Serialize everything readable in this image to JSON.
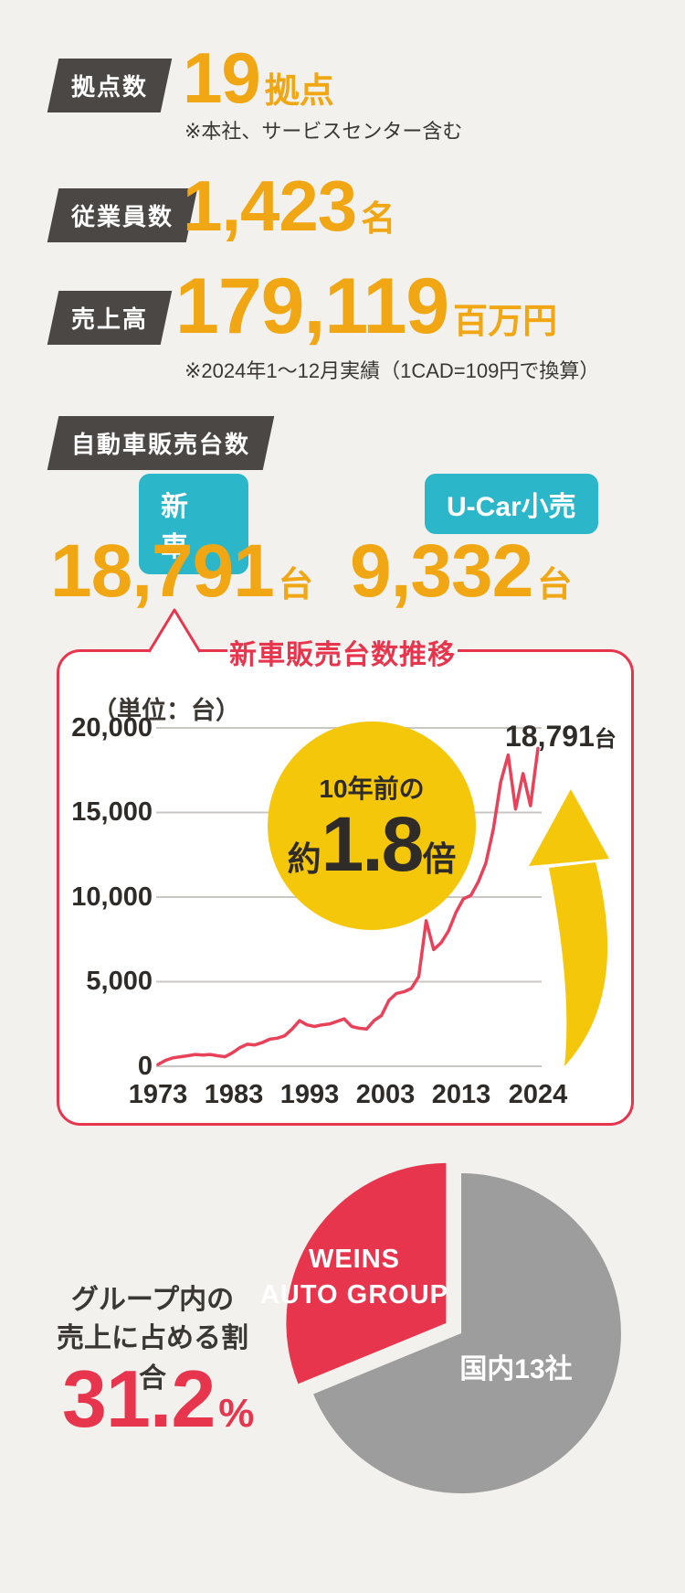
{
  "colors": {
    "background": "#f2f1ee",
    "accent_orange": "#f0a713",
    "accent_yellow": "#f5c70b",
    "accent_red": "#e8354e",
    "accent_cyan": "#2bb7c9",
    "badge_dark": "#4b4744",
    "text_dark": "#3b3733",
    "pie_gray": "#9d9d9d",
    "gridline": "#c9c7c4"
  },
  "stats": [
    {
      "label": "拠点数",
      "value": "19",
      "unit": "拠点",
      "note": "※本社、サービスセンター含む"
    },
    {
      "label": "従業員数",
      "value": "1,423",
      "unit": "名"
    },
    {
      "label": "売上高",
      "value": "179,119",
      "unit": "百万円",
      "note": "※2024年1〜12月実績（1CAD=109円で換算）"
    }
  ],
  "vehicle_sales": {
    "label": "自動車販売台数",
    "items": [
      {
        "badge": "新車",
        "value": "18,791",
        "unit": "台"
      },
      {
        "badge": "U-Car小売",
        "value": "9,332",
        "unit": "台"
      }
    ]
  },
  "chart_data": [
    {
      "type": "line",
      "title": "新車販売台数推移",
      "unit_label": "（単位：台）",
      "x": [
        1973,
        1974,
        1975,
        1976,
        1977,
        1978,
        1979,
        1980,
        1981,
        1982,
        1983,
        1984,
        1985,
        1986,
        1987,
        1988,
        1989,
        1990,
        1991,
        1992,
        1993,
        1994,
        1995,
        1996,
        1997,
        1998,
        1999,
        2000,
        2001,
        2002,
        2003,
        2004,
        2005,
        2006,
        2007,
        2008,
        2009,
        2010,
        2011,
        2012,
        2013,
        2014,
        2015,
        2016,
        2017,
        2018,
        2019,
        2020,
        2021,
        2022,
        2023,
        2024
      ],
      "values": [
        100,
        350,
        500,
        560,
        620,
        700,
        660,
        700,
        620,
        560,
        800,
        1100,
        1300,
        1260,
        1400,
        1600,
        1660,
        1800,
        2200,
        2700,
        2450,
        2350,
        2450,
        2500,
        2650,
        2800,
        2350,
        2250,
        2200,
        2700,
        3000,
        3900,
        4300,
        4400,
        4600,
        5300,
        8600,
        6900,
        7300,
        8000,
        9100,
        9900,
        10100,
        10900,
        12000,
        14000,
        16800,
        18400,
        15200,
        17300,
        15400,
        18791
      ],
      "ylim": [
        0,
        20000
      ],
      "yticks": [
        20000,
        15000,
        10000,
        5000,
        0
      ],
      "ytick_labels": [
        "20,000",
        "15,000",
        "10,000",
        "5,000",
        "0"
      ],
      "xtick_labels": [
        "1973",
        "1983",
        "1993",
        "2003",
        "2013",
        "2024"
      ],
      "grid": true,
      "legend": false,
      "line_color": "#e8425a",
      "annotations": {
        "bubble": {
          "line1": "10年前の",
          "prefix": "約",
          "value": "1.8",
          "suffix": "倍"
        },
        "endpoint_label": {
          "value": "18,791",
          "unit": "台"
        }
      }
    },
    {
      "type": "pie",
      "slices": [
        {
          "label": "WEINS AUTO GROUP",
          "label_lines": [
            "WEINS",
            "AUTO GROUP"
          ],
          "value": 31.2,
          "color": "#e8354e"
        },
        {
          "label": "国内13社",
          "label_lines": [
            "国内13社"
          ],
          "value": 68.8,
          "color": "#9d9d9d"
        }
      ],
      "caption_lines": [
        "グループ内の",
        "売上に占める割合"
      ],
      "highlight": {
        "value": "31.2",
        "unit": "%"
      }
    }
  ]
}
